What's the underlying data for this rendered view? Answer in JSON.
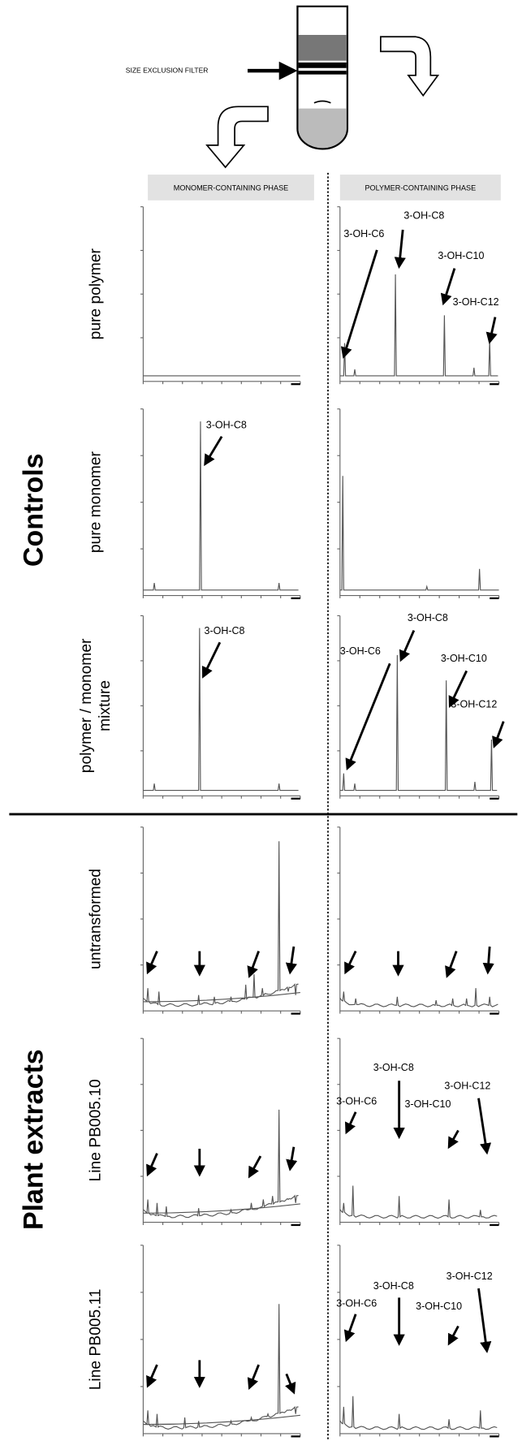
{
  "filter_label": "SIZE EXCLUSION FILTER",
  "columns": [
    "MONOMER-CONTAINING PHASE",
    "POLYMER-CONTAINING PHASE"
  ],
  "groups": [
    {
      "label": "Controls",
      "rows": [
        [
          "pure polymer"
        ],
        [
          "pure monomer"
        ],
        [
          "polymer / monomer",
          "mixture"
        ]
      ]
    },
    {
      "label": "Plant extracts",
      "rows": [
        [
          "untransformed"
        ],
        [
          "Line PB005.10"
        ],
        [
          "Line PB005.11"
        ]
      ]
    }
  ],
  "annotations": [
    "3-OH-C6",
    "3-OH-C8",
    "3-OH-C10",
    "3-OH-C12",
    "3-OH-C8",
    "3-OH-C8",
    "3-OH-C6",
    "3-OH-C8",
    "3-OH-C10",
    "3-OH-C12",
    "3-OH-C6",
    "3-OH-C8",
    "3-OH-C10",
    "3-OH-C12",
    "3-OH-C6",
    "3-OH-C8",
    "3-OH-C10",
    "3-OH-C12"
  ]
}
